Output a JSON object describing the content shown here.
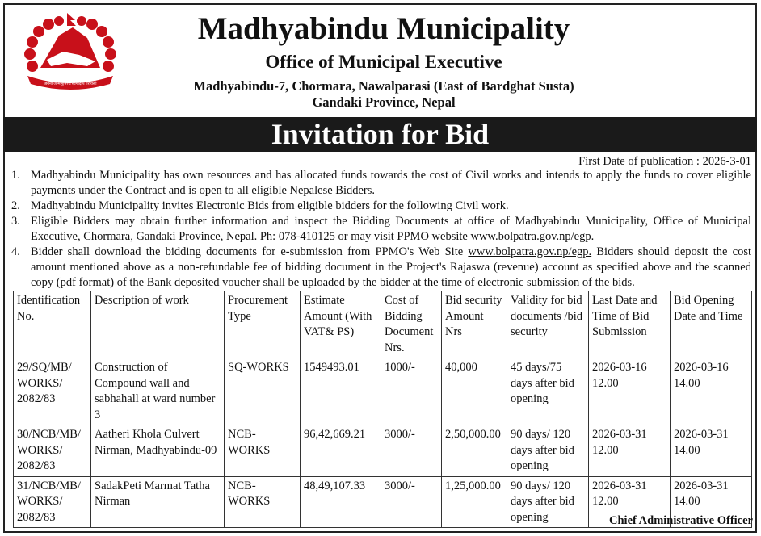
{
  "header": {
    "title": "Madhyabindu Municipality",
    "office": "Office of Municipal Executive",
    "address": "Madhyabindu-7, Chormara, Nawalparasi (East of Bardghat Susta)",
    "province": "Gandaki Province, Nepal",
    "logo": "Nepal government emblem",
    "logo_text": "जननी जन्मभूमिश्च स्वर्गादपि गरीयसी",
    "brand_color": "#d0101a"
  },
  "banner": "Invitation for Bid",
  "publication": "First Date of publication : 2026-3-01",
  "paragraphs": [
    {
      "num": "1.",
      "text": "Madhyabindu Municipality has own resources and has allocated funds towards the cost of Civil works and intends to apply the funds to cover eligible payments under the Contract and is open to all eligible Nepalese Bidders."
    },
    {
      "num": "2.",
      "text": "Madhyabindu Municipality invites Electronic Bids from eligible bidders for the following Civil work."
    },
    {
      "num": "3.",
      "text": "Eligible Bidders may obtain further information and inspect the Bidding Documents at office of Madhyabindu Municipality, Office of Municipal Executive, Chormara, Gandaki Province, Nepal. Ph: 078-410125 or may visit PPMO website ",
      "link": "www.bolpatra.gov.np/egp."
    },
    {
      "num": "4.",
      "text": "Bidder shall download the bidding documents for e-submission from PPMO's Web Site ",
      "link": "www.bolpatra.gov.np/egp.",
      "text2": " Bidders  should deposit the cost amount mentioned above as a non-refundable fee of bidding document in the Project's Rajaswa (revenue) account as specified above and the scanned copy (pdf format) of the Bank deposited voucher shall be uploaded by the bidder at the time of electronic submission of the bids."
    }
  ],
  "table": {
    "headers": [
      "Identification No.",
      "Description of work",
      "Procurement Type",
      "Estimate Amount (With VAT& PS)",
      "Cost of Bidding Document Nrs.",
      "Bid security Amount Nrs",
      "Validity for bid documents /bid security",
      "Last Date and Time of Bid Submission",
      "Bid Opening Date and Time"
    ],
    "rows": [
      [
        "29/SQ/MB/ WORKS/ 2082/83",
        "Construction of Compound wall and sabhahall at ward number 3",
        "SQ-WORKS",
        "1549493.01",
        "1000/-",
        "40,000",
        "45 days/75 days after bid opening",
        "2026-03-16 12.00",
        "2026-03-16 14.00"
      ],
      [
        "30/NCB/MB/ WORKS/ 2082/83",
        "Aatheri Khola Culvert Nirman, Madhyabindu-09",
        "NCB-WORKS",
        "96,42,669.21",
        "3000/-",
        "2,50,000.00",
        "90 days/   120 days after bid opening",
        "2026-03-31 12.00",
        "2026-03-31 14.00"
      ],
      [
        "31/NCB/MB/ WORKS/ 2082/83",
        "SadakPeti Marmat Tatha Nirman",
        "NCB-WORKS",
        "48,49,107.33",
        "3000/-",
        "1,25,000.00",
        "90 days/   120 days after bid opening",
        "2026-03-31 12.00",
        "2026-03-31 14.00"
      ]
    ]
  },
  "signature": "Chief Administrative Officer"
}
